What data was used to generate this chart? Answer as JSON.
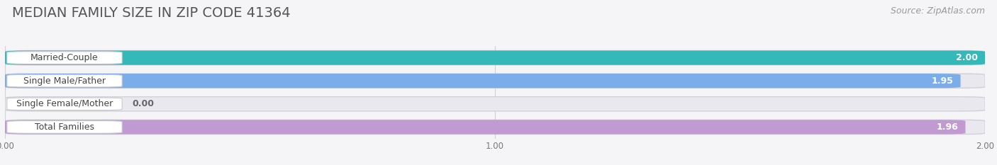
{
  "title": "MEDIAN FAMILY SIZE IN ZIP CODE 41364",
  "source": "Source: ZipAtlas.com",
  "categories": [
    "Married-Couple",
    "Single Male/Father",
    "Single Female/Mother",
    "Total Families"
  ],
  "values": [
    2.0,
    1.95,
    0.0,
    1.96
  ],
  "value_labels": [
    "2.00",
    "1.95",
    "0.00",
    "1.96"
  ],
  "bar_colors": [
    "#35b8b8",
    "#7aadea",
    "#f4a8bc",
    "#c09ad0"
  ],
  "xlim": [
    0,
    2.0
  ],
  "xticks": [
    0.0,
    1.0,
    2.0
  ],
  "xtick_labels": [
    "0.00",
    "1.00",
    "2.00"
  ],
  "bar_height": 0.62,
  "background_color": "#f5f5f8",
  "track_color": "#e8e8ee",
  "title_fontsize": 14,
  "source_fontsize": 9,
  "label_fontsize": 9,
  "value_fontsize": 9
}
